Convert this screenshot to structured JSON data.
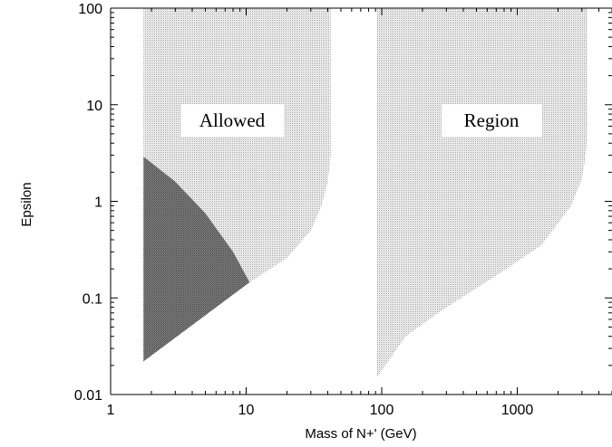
{
  "chart_data": {
    "type": "area",
    "title": "",
    "xlabel": "Mass of N+' (GeV)",
    "ylabel": "Epsilon",
    "xscale": "log",
    "yscale": "log",
    "xlim": [
      1,
      5000
    ],
    "ylim": [
      0.01,
      100
    ],
    "x_ticks": [
      "1",
      "10",
      "100",
      "1000"
    ],
    "y_ticks": [
      "0.01",
      "0.1",
      "1",
      "10",
      "100"
    ],
    "grid": false,
    "legend": "none",
    "annotations": [
      "Allowed",
      "Region"
    ],
    "colors": {
      "light_region": "#d4d4d4",
      "dark_region": "#6e6e6e",
      "axis": "#000000"
    },
    "series": [
      {
        "x": [
          1.75,
          1.75,
          10.6,
          20,
          30,
          36,
          40,
          42,
          42
        ],
        "y": [
          100,
          0.022,
          0.145,
          0.26,
          0.5,
          0.9,
          1.6,
          3,
          100
        ]
      },
      {
        "x": [
          1.75,
          1.75,
          3,
          5,
          8,
          10.6
        ],
        "y": [
          0.022,
          2.9,
          1.6,
          0.75,
          0.3,
          0.145
        ]
      },
      {
        "x": [
          92,
          92,
          150,
          300,
          700,
          1500,
          2500,
          3000,
          3200,
          3300,
          3300
        ],
        "y": [
          100,
          0.015,
          0.04,
          0.08,
          0.17,
          0.35,
          0.9,
          1.7,
          3,
          5,
          100
        ]
      }
    ]
  }
}
